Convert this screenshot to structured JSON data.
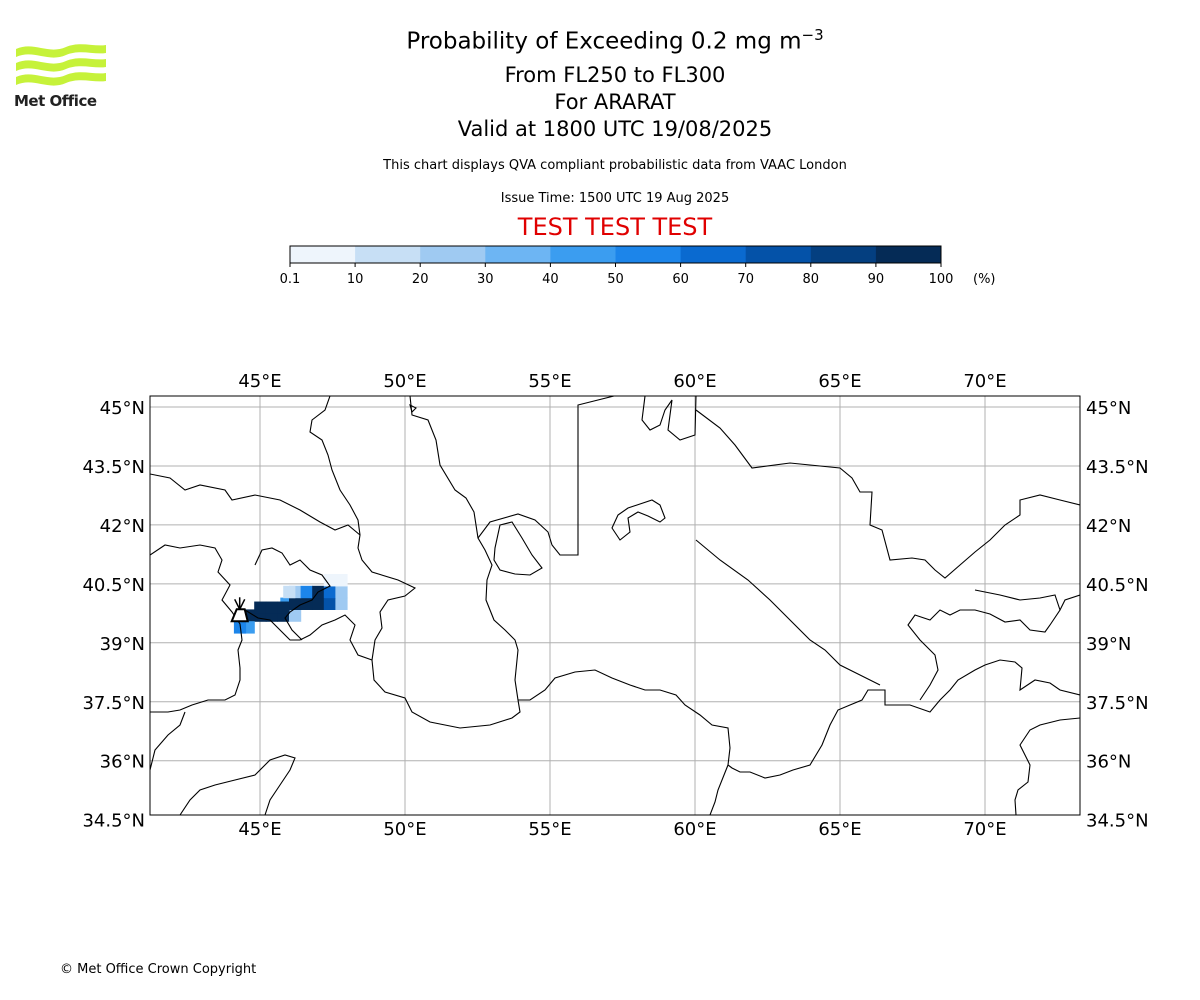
{
  "logo": {
    "text": "Met Office",
    "color": "#c6f23a"
  },
  "header": {
    "title": "Probability of Exceeding 0.2 mg m",
    "title_superscript": "−3",
    "levels": "From FL250 to FL300",
    "volcano": "For ARARAT",
    "valid": "Valid at 1800 UTC 19/08/2025",
    "description": "This chart displays QVA compliant probabilistic data from VAAC London",
    "issue_time": "Issue Time: 1500 UTC 19 Aug 2025",
    "test_banner": "TEST TEST TEST"
  },
  "colorbar": {
    "ticks": [
      "0.1",
      "10",
      "20",
      "30",
      "40",
      "50",
      "60",
      "70",
      "80",
      "90",
      "100"
    ],
    "unit": "(%)",
    "colors": [
      "#eef5fc",
      "#c7dff5",
      "#9fcaf2",
      "#6db5f3",
      "#3b9df0",
      "#1c85ea",
      "#0a6ad0",
      "#0452a8",
      "#043f80",
      "#052b56"
    ]
  },
  "map": {
    "lon_labels": [
      "45°E",
      "50°E",
      "55°E",
      "60°E",
      "65°E",
      "70°E"
    ],
    "lat_labels": [
      "45°N",
      "43.5°N",
      "42°N",
      "40.5°N",
      "39°N",
      "37.5°N",
      "36°N",
      "34.5°N"
    ],
    "lon_values": [
      45,
      50,
      55,
      60,
      65,
      70
    ],
    "lat_values": [
      45,
      43.5,
      42,
      40.5,
      39,
      37.5,
      36,
      34.5
    ],
    "volcano_marker": {
      "lon": 44.3,
      "lat": 39.7
    },
    "probability_cells": [
      {
        "lon": 45.0,
        "lat": 39.7,
        "p": 95
      },
      {
        "lon": 45.4,
        "lat": 39.7,
        "p": 95
      },
      {
        "lon": 45.8,
        "lat": 39.7,
        "p": 95
      },
      {
        "lon": 46.2,
        "lat": 39.7,
        "p": 25
      },
      {
        "lon": 44.6,
        "lat": 39.7,
        "p": 95
      },
      {
        "lon": 44.6,
        "lat": 39.4,
        "p": 45
      },
      {
        "lon": 44.3,
        "lat": 39.4,
        "p": 55
      },
      {
        "lon": 45.9,
        "lat": 40.0,
        "p": 45
      },
      {
        "lon": 46.2,
        "lat": 40.0,
        "p": 95
      },
      {
        "lon": 46.6,
        "lat": 40.0,
        "p": 95
      },
      {
        "lon": 47.0,
        "lat": 40.0,
        "p": 95
      },
      {
        "lon": 47.4,
        "lat": 40.0,
        "p": 75
      },
      {
        "lon": 47.8,
        "lat": 40.0,
        "p": 25
      },
      {
        "lon": 46.2,
        "lat": 40.3,
        "p": 25
      },
      {
        "lon": 46.6,
        "lat": 40.3,
        "p": 55
      },
      {
        "lon": 47.0,
        "lat": 40.3,
        "p": 95
      },
      {
        "lon": 47.4,
        "lat": 40.3,
        "p": 65
      },
      {
        "lon": 47.8,
        "lat": 40.3,
        "p": 25
      },
      {
        "lon": 46.0,
        "lat": 40.3,
        "p": 15
      },
      {
        "lon": 47.4,
        "lat": 40.6,
        "p": 5
      },
      {
        "lon": 47.8,
        "lat": 40.6,
        "p": 5
      },
      {
        "lon": 45.0,
        "lat": 39.9,
        "p": 90
      },
      {
        "lon": 45.4,
        "lat": 39.9,
        "p": 95
      },
      {
        "lon": 45.8,
        "lat": 39.9,
        "p": 95
      }
    ]
  },
  "footer": {
    "copyright": "© Met Office Crown Copyright"
  }
}
